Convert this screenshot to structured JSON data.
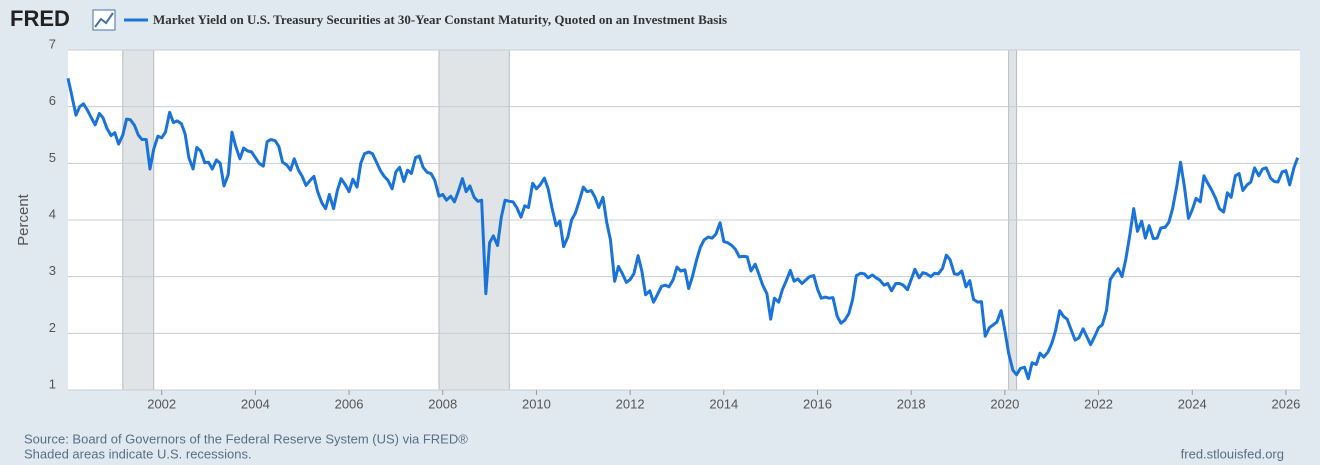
{
  "logo": "FRED",
  "chart_data": {
    "type": "line",
    "y_label": "Percent",
    "source": "Source: Board of Governors of the Federal Reserve System (US) via FRED®",
    "note": "Shaded areas indicate U.S. recessions.",
    "site": "fred.stlouisfed.org",
    "xlim": [
      2000,
      2026.3
    ],
    "xticks": [
      2002,
      2004,
      2006,
      2008,
      2010,
      2012,
      2014,
      2016,
      2018,
      2020,
      2022,
      2024,
      2026
    ],
    "ylim": [
      1,
      7
    ],
    "yticks": [
      1,
      2,
      3,
      4,
      5,
      6,
      7
    ],
    "grid": true,
    "recession_color": "#e1e4e7",
    "recessions": [
      [
        2001.17,
        2001.83
      ],
      [
        2007.92,
        2009.42
      ],
      [
        2020.08,
        2020.25
      ]
    ],
    "x": [
      2000,
      2000.08,
      2000.17,
      2000.25,
      2000.33,
      2000.42,
      2000.5,
      2000.58,
      2000.67,
      2000.75,
      2000.83,
      2000.92,
      2001,
      2001.08,
      2001.17,
      2001.25,
      2001.33,
      2001.42,
      2001.5,
      2001.58,
      2001.67,
      2001.75,
      2001.83,
      2001.92,
      2002,
      2002.08,
      2002.17,
      2002.25,
      2002.33,
      2002.42,
      2002.5,
      2002.58,
      2002.67,
      2002.75,
      2002.83,
      2002.92,
      2003,
      2003.08,
      2003.17,
      2003.25,
      2003.33,
      2003.42,
      2003.5,
      2003.58,
      2003.67,
      2003.75,
      2003.83,
      2003.92,
      2004,
      2004.08,
      2004.17,
      2004.25,
      2004.33,
      2004.42,
      2004.5,
      2004.58,
      2004.67,
      2004.75,
      2004.83,
      2004.92,
      2005,
      2005.08,
      2005.17,
      2005.25,
      2005.33,
      2005.42,
      2005.5,
      2005.58,
      2005.67,
      2005.75,
      2005.83,
      2005.92,
      2006,
      2006.08,
      2006.17,
      2006.25,
      2006.33,
      2006.42,
      2006.5,
      2006.58,
      2006.67,
      2006.75,
      2006.83,
      2006.92,
      2007,
      2007.08,
      2007.17,
      2007.25,
      2007.33,
      2007.42,
      2007.5,
      2007.58,
      2007.67,
      2007.75,
      2007.83,
      2007.92,
      2008,
      2008.08,
      2008.17,
      2008.25,
      2008.33,
      2008.42,
      2008.5,
      2008.58,
      2008.67,
      2008.75,
      2008.83,
      2008.92,
      2009,
      2009.08,
      2009.17,
      2009.25,
      2009.33,
      2009.42,
      2009.5,
      2009.58,
      2009.67,
      2009.75,
      2009.83,
      2009.92,
      2010,
      2010.08,
      2010.17,
      2010.25,
      2010.33,
      2010.42,
      2010.5,
      2010.58,
      2010.67,
      2010.75,
      2010.83,
      2010.92,
      2011,
      2011.08,
      2011.17,
      2011.25,
      2011.33,
      2011.42,
      2011.5,
      2011.58,
      2011.67,
      2011.75,
      2011.83,
      2011.92,
      2012,
      2012.08,
      2012.17,
      2012.25,
      2012.33,
      2012.42,
      2012.5,
      2012.58,
      2012.67,
      2012.75,
      2012.83,
      2012.92,
      2013,
      2013.08,
      2013.17,
      2013.25,
      2013.33,
      2013.42,
      2013.5,
      2013.58,
      2013.67,
      2013.75,
      2013.83,
      2013.92,
      2014,
      2014.08,
      2014.17,
      2014.25,
      2014.33,
      2014.42,
      2014.5,
      2014.58,
      2014.67,
      2014.75,
      2014.83,
      2014.92,
      2015,
      2015.08,
      2015.17,
      2015.25,
      2015.33,
      2015.42,
      2015.5,
      2015.58,
      2015.67,
      2015.75,
      2015.83,
      2015.92,
      2016,
      2016.08,
      2016.17,
      2016.25,
      2016.33,
      2016.42,
      2016.5,
      2016.58,
      2016.67,
      2016.75,
      2016.83,
      2016.92,
      2017,
      2017.08,
      2017.17,
      2017.25,
      2017.33,
      2017.42,
      2017.5,
      2017.58,
      2017.67,
      2017.75,
      2017.83,
      2017.92,
      2018,
      2018.08,
      2018.17,
      2018.25,
      2018.33,
      2018.42,
      2018.5,
      2018.58,
      2018.67,
      2018.75,
      2018.83,
      2018.92,
      2019,
      2019.08,
      2019.17,
      2019.25,
      2019.33,
      2019.42,
      2019.5,
      2019.58,
      2019.67,
      2019.75,
      2019.83,
      2019.92,
      2020,
      2020.08,
      2020.17,
      2020.25,
      2020.33,
      2020.42,
      2020.5,
      2020.58,
      2020.67,
      2020.75,
      2020.83,
      2020.92,
      2021,
      2021.08,
      2021.17,
      2021.25,
      2021.33,
      2021.42,
      2021.5,
      2021.58,
      2021.67,
      2021.75,
      2021.83,
      2021.92,
      2022,
      2022.08,
      2022.17,
      2022.25,
      2022.33,
      2022.42,
      2022.5,
      2022.58,
      2022.67,
      2022.75,
      2022.83,
      2022.92,
      2023,
      2023.08,
      2023.17,
      2023.25,
      2023.33,
      2023.42,
      2023.5,
      2023.58,
      2023.67,
      2023.75,
      2023.83,
      2023.92,
      2024,
      2024.08,
      2024.17,
      2024.25,
      2024.33,
      2024.42,
      2024.5,
      2024.58,
      2024.67,
      2024.75,
      2024.83,
      2024.92,
      2025,
      2025.08,
      2025.17,
      2025.25,
      2025.33,
      2025.42,
      2025.5,
      2025.58,
      2025.67,
      2025.75,
      2025.83,
      2025.92,
      2026,
      2026.08,
      2026.17,
      2026.25
    ],
    "series": [
      {
        "name": "Market Yield on U.S. Treasury Securities at 30-Year Constant Maturity, Quoted on an Investment Basis",
        "color": "#1a73d9",
        "values": [
          6.5,
          6.2,
          5.85,
          6.0,
          6.05,
          5.93,
          5.8,
          5.68,
          5.88,
          5.8,
          5.62,
          5.49,
          5.54,
          5.34,
          5.5,
          5.78,
          5.77,
          5.67,
          5.5,
          5.42,
          5.42,
          4.9,
          5.25,
          5.48,
          5.45,
          5.55,
          5.9,
          5.72,
          5.75,
          5.7,
          5.52,
          5.1,
          4.9,
          5.28,
          5.22,
          5.01,
          5.02,
          4.9,
          5.06,
          5.0,
          4.6,
          4.8,
          5.55,
          5.3,
          5.08,
          5.27,
          5.22,
          5.2,
          5.1,
          5.0,
          4.95,
          5.38,
          5.42,
          5.4,
          5.3,
          5.02,
          4.97,
          4.88,
          5.08,
          4.88,
          4.77,
          4.61,
          4.7,
          4.77,
          4.5,
          4.3,
          4.2,
          4.45,
          4.2,
          4.52,
          4.73,
          4.62,
          4.5,
          4.72,
          4.58,
          5.0,
          5.17,
          5.2,
          5.17,
          5.03,
          4.87,
          4.77,
          4.7,
          4.55,
          4.85,
          4.93,
          4.68,
          4.88,
          4.82,
          5.1,
          5.13,
          4.93,
          4.84,
          4.82,
          4.7,
          4.42,
          4.45,
          4.35,
          4.42,
          4.32,
          4.5,
          4.73,
          4.5,
          4.6,
          4.4,
          4.33,
          4.35,
          2.7,
          3.6,
          3.72,
          3.55,
          4.05,
          4.35,
          4.33,
          4.32,
          4.22,
          4.05,
          4.25,
          4.22,
          4.65,
          4.55,
          4.62,
          4.74,
          4.55,
          4.22,
          3.9,
          3.98,
          3.53,
          3.7,
          4.0,
          4.12,
          4.35,
          4.58,
          4.5,
          4.52,
          4.4,
          4.22,
          4.4,
          3.96,
          3.65,
          2.92,
          3.18,
          3.06,
          2.9,
          2.95,
          3.05,
          3.37,
          3.1,
          2.68,
          2.75,
          2.55,
          2.68,
          2.83,
          2.85,
          2.82,
          2.95,
          3.17,
          3.1,
          3.12,
          2.79,
          3.0,
          3.3,
          3.52,
          3.65,
          3.7,
          3.68,
          3.75,
          3.95,
          3.62,
          3.6,
          3.55,
          3.48,
          3.35,
          3.36,
          3.35,
          3.1,
          3.22,
          3.04,
          2.85,
          2.7,
          2.25,
          2.62,
          2.55,
          2.77,
          2.92,
          3.11,
          2.92,
          2.96,
          2.88,
          2.94,
          3.0,
          3.02,
          2.78,
          2.62,
          2.64,
          2.62,
          2.63,
          2.3,
          2.18,
          2.23,
          2.35,
          2.6,
          3.02,
          3.06,
          3.05,
          2.98,
          3.03,
          2.98,
          2.94,
          2.85,
          2.88,
          2.75,
          2.88,
          2.88,
          2.85,
          2.77,
          2.95,
          3.13,
          2.98,
          3.07,
          3.05,
          3.0,
          3.06,
          3.05,
          3.15,
          3.38,
          3.3,
          3.05,
          3.04,
          3.1,
          2.82,
          2.93,
          2.6,
          2.55,
          2.56,
          1.95,
          2.1,
          2.15,
          2.2,
          2.4,
          2.05,
          1.65,
          1.35,
          1.27,
          1.38,
          1.4,
          1.2,
          1.48,
          1.45,
          1.65,
          1.58,
          1.67,
          1.82,
          2.04,
          2.4,
          2.3,
          2.25,
          2.05,
          1.88,
          1.92,
          2.08,
          1.94,
          1.8,
          1.95,
          2.1,
          2.15,
          2.41,
          2.95,
          3.05,
          3.14,
          3.0,
          3.3,
          3.75,
          4.2,
          3.8,
          3.98,
          3.68,
          3.9,
          3.67,
          3.68,
          3.86,
          3.87,
          3.96,
          4.2,
          4.6,
          5.02,
          4.6,
          4.03,
          4.18,
          4.38,
          4.32,
          4.78,
          4.65,
          4.52,
          4.38,
          4.2,
          4.14,
          4.48,
          4.4,
          4.78,
          4.82,
          4.52,
          4.62,
          4.67,
          4.92,
          4.78,
          4.9,
          4.92,
          4.74,
          4.68,
          4.67,
          4.85,
          4.87,
          4.62,
          4.92,
          5.1
        ]
      }
    ]
  }
}
